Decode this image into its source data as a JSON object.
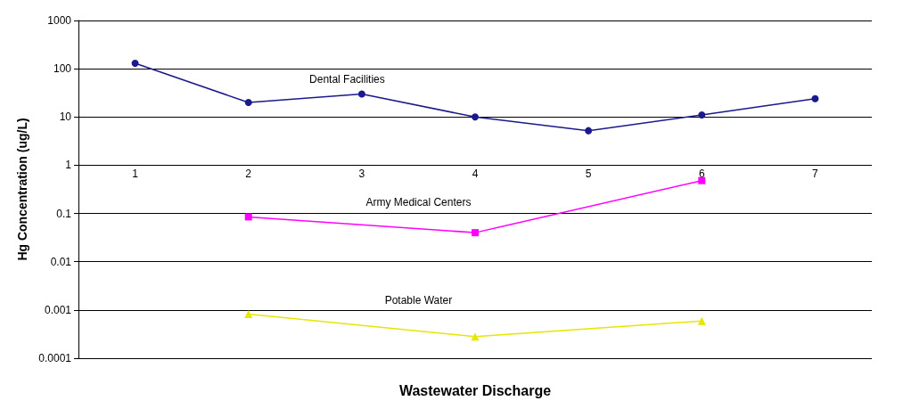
{
  "chart_data": {
    "type": "line",
    "xlabel": "Wastewater Discharge",
    "ylabel": "Hg Concentration (ug/L)",
    "categories": [
      "1",
      "2",
      "3",
      "4",
      "5",
      "6",
      "7"
    ],
    "log": "y",
    "ylim": [
      0.0001,
      1000
    ],
    "yticks": [
      0.0001,
      0.001,
      0.01,
      0.1,
      1,
      10,
      100,
      1000
    ],
    "grid": "y",
    "series": [
      {
        "name": "Dental Facilities",
        "color": "#1a1a8c",
        "marker": "circle",
        "values": [
          130,
          20,
          30,
          10,
          5.2,
          11,
          24
        ]
      },
      {
        "name": "Army Medical Centers",
        "color": "#ff00ff",
        "marker": "square",
        "values": [
          null,
          0.085,
          null,
          0.04,
          null,
          0.48,
          null
        ]
      },
      {
        "name": "Potable Water",
        "color": "#e6e600",
        "marker": "triangle",
        "values": [
          null,
          0.00082,
          null,
          0.00028,
          null,
          0.00059,
          null
        ]
      }
    ]
  }
}
